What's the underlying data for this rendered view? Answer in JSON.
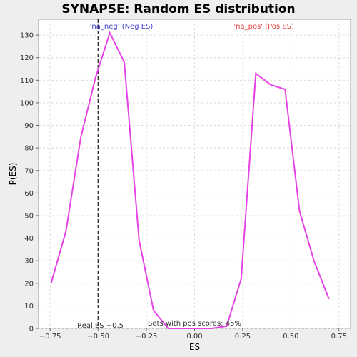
{
  "chart_data": {
    "type": "line",
    "title": "SYNAPSE: Random ES distribution",
    "xlabel": "ES",
    "ylabel": "P(ES)",
    "xlim": [
      -0.81,
      0.81
    ],
    "ylim": [
      0,
      137
    ],
    "x_ticks": [
      -0.75,
      -0.5,
      -0.25,
      0.0,
      0.25,
      0.5,
      0.75
    ],
    "x_tick_labels": [
      "−0.75",
      "−0.50",
      "−0.25",
      "0.00",
      "0.25",
      "0.50",
      "0.75"
    ],
    "y_ticks": [
      0,
      10,
      20,
      30,
      40,
      50,
      60,
      70,
      80,
      90,
      100,
      110,
      120,
      130
    ],
    "grid": true,
    "series": [
      {
        "color": "#e642e6",
        "x": [
          -0.745,
          -0.668,
          -0.59,
          -0.515,
          -0.44,
          -0.365,
          -0.288,
          -0.213,
          -0.137,
          -0.062,
          0.015,
          0.09,
          0.167,
          0.242,
          0.318,
          0.395,
          0.47,
          0.545,
          0.62,
          0.698
        ],
        "y": [
          20,
          43,
          85,
          111,
          131,
          118,
          39,
          8,
          0,
          0,
          0,
          0,
          1,
          22,
          113,
          108,
          106,
          52,
          30,
          13
        ]
      }
    ],
    "reference_line": {
      "x": -0.5,
      "color": "#333333",
      "label": "Real ES −0.5"
    },
    "annotations": {
      "neg_label": "'na_neg' (Neg ES)",
      "neg_color": "#4040cc",
      "pos_label": "'na_pos' (Pos ES)",
      "pos_color": "#e04040",
      "sets_label": "Sets with pos scores: 45%"
    }
  }
}
